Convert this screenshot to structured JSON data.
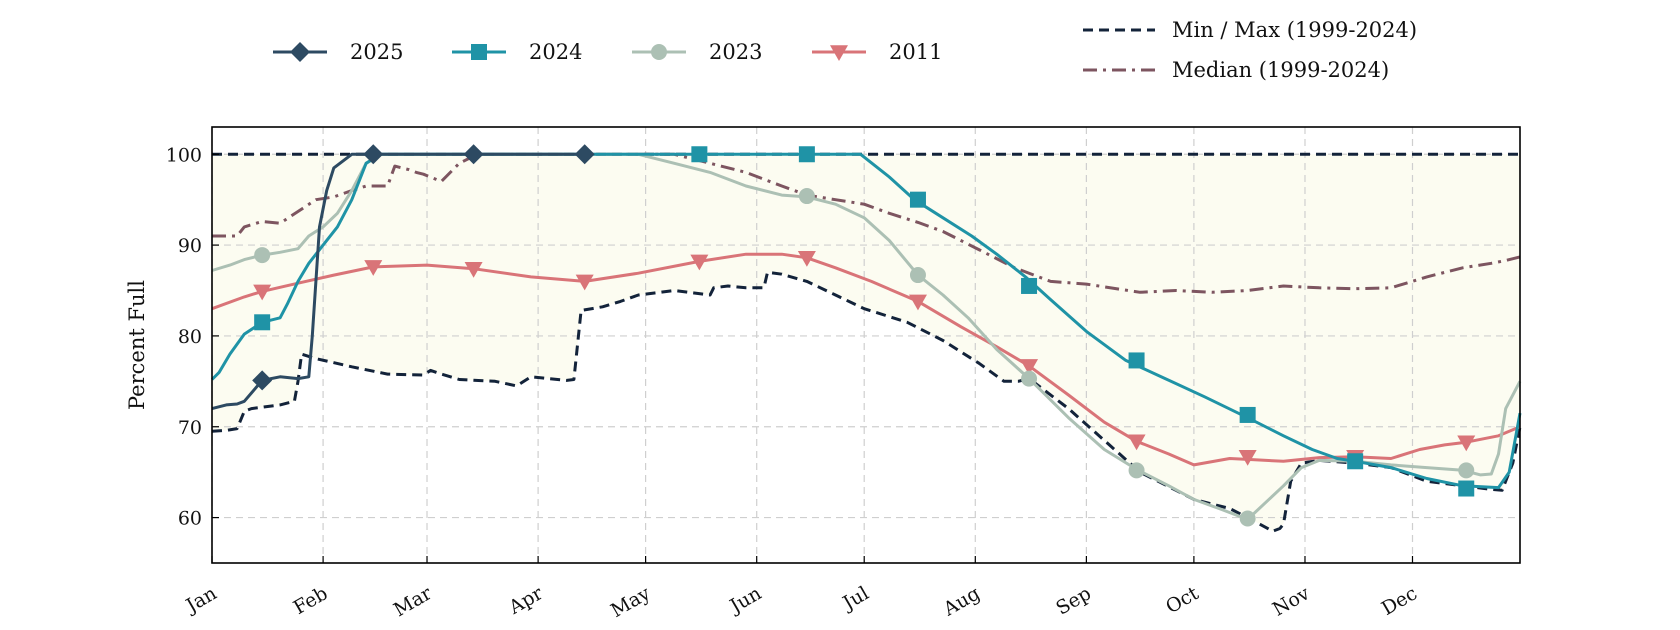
{
  "chart_data": {
    "type": "line",
    "title": "",
    "xlabel": "",
    "ylabel": "Percent Full",
    "ylim": [
      55,
      103
    ],
    "yticks": [
      60,
      70,
      80,
      90,
      100
    ],
    "xlim": [
      1,
      366
    ],
    "x_tick_labels": [
      "Jan",
      "Feb",
      "Mar",
      "Apr",
      "May",
      "Jun",
      "Jul",
      "Aug",
      "Sep",
      "Oct",
      "Nov",
      "Dec"
    ],
    "x_tick_days": [
      1,
      32,
      61,
      92,
      122,
      153,
      183,
      214,
      245,
      275,
      306,
      336
    ],
    "grid": true,
    "legend_placement": "top",
    "colors": {
      "s2025": "#2d4a62",
      "s2024": "#1f93a6",
      "s2023": "#acc0b4",
      "s2011": "#d97478",
      "minmax": "#13233a",
      "median": "#7d5560",
      "band": "#fcfcf1"
    },
    "series": [
      {
        "name": "2025",
        "marker": "diamond",
        "line": "solid",
        "x": [
          1,
          5,
          8,
          10,
          15,
          20,
          25,
          28,
          29,
          31,
          33,
          35,
          40,
          46,
          60,
          75,
          100,
          106
        ],
        "y": [
          72,
          72.4,
          72.5,
          72.8,
          75.1,
          75.5,
          75.3,
          75.5,
          80,
          92,
          96,
          98.5,
          100,
          100,
          100,
          100,
          100,
          100
        ],
        "marker_x": [
          15,
          46,
          74,
          105
        ],
        "marker_y": [
          75.1,
          100,
          100,
          100
        ]
      },
      {
        "name": "2024",
        "marker": "square",
        "line": "solid",
        "x": [
          1,
          3,
          6,
          10,
          15,
          20,
          22,
          25,
          28,
          32,
          36,
          40,
          44,
          48,
          60,
          80,
          100,
          120,
          140,
          160,
          182,
          190,
          197,
          205,
          213,
          220,
          228,
          235,
          245,
          256,
          267,
          278,
          290,
          300,
          308,
          315,
          320,
          330,
          340,
          350,
          360,
          363,
          366
        ],
        "y": [
          75.2,
          76,
          78,
          80.2,
          81.5,
          82,
          83.5,
          86,
          88,
          90,
          92,
          95,
          99,
          100,
          100,
          100,
          100,
          100,
          100,
          100,
          100,
          97.5,
          95,
          93,
          91,
          89,
          86.5,
          84,
          80.5,
          77.3,
          75.3,
          73.3,
          71,
          69,
          67.5,
          66.5,
          66.2,
          65.5,
          64.3,
          63.5,
          63.3,
          65,
          71.5
        ],
        "marker_x": [
          15,
          137,
          167,
          198,
          229,
          259,
          290,
          320,
          351
        ],
        "marker_y": [
          81.5,
          100,
          100,
          95,
          85.5,
          77.3,
          71.3,
          66.2,
          63.2
        ]
      },
      {
        "name": "2023",
        "marker": "circle",
        "line": "solid",
        "x": [
          1,
          6,
          10,
          15,
          20,
          25,
          28,
          32,
          36,
          40,
          44,
          48,
          60,
          80,
          100,
          120,
          130,
          140,
          150,
          160,
          167,
          175,
          183,
          190,
          198,
          205,
          212,
          220,
          229,
          240,
          250,
          259,
          268,
          275,
          282,
          290,
          300,
          305,
          310,
          320,
          330,
          340,
          350,
          355,
          358,
          360,
          362,
          366
        ],
        "y": [
          87.2,
          87.8,
          88.4,
          88.9,
          89.2,
          89.6,
          91,
          92,
          93.5,
          96,
          99,
          100,
          100,
          100,
          100,
          100,
          99,
          98,
          96.5,
          95.5,
          95.3,
          94.5,
          93,
          90.5,
          86.7,
          84.5,
          82,
          78.5,
          75.3,
          71,
          67.5,
          65.3,
          63.5,
          62,
          61,
          59.8,
          63.5,
          65.5,
          66.3,
          66.2,
          65.8,
          65.5,
          65.2,
          64.7,
          64.8,
          67,
          72,
          75
        ],
        "marker_x": [
          15,
          167,
          198,
          229,
          259,
          290,
          351
        ],
        "marker_y": [
          88.9,
          95.4,
          86.7,
          75.3,
          65.2,
          59.9,
          65.2
        ]
      },
      {
        "name": "2011",
        "marker": "triangle-down",
        "line": "solid",
        "x": [
          1,
          10,
          15,
          25,
          35,
          46,
          61,
          74,
          90,
          105,
          120,
          137,
          150,
          160,
          167,
          175,
          185,
          198,
          210,
          220,
          229,
          240,
          250,
          259,
          268,
          275,
          285,
          290,
          300,
          310,
          320,
          330,
          338,
          345,
          351,
          360,
          366
        ],
        "y": [
          83,
          84.3,
          84.9,
          85.8,
          86.7,
          87.6,
          87.8,
          87.4,
          86.5,
          86,
          86.9,
          88.2,
          89,
          89,
          88.6,
          87.5,
          86,
          83.8,
          81,
          78.8,
          76.7,
          73.5,
          70.5,
          68.4,
          67,
          65.8,
          66.5,
          66.4,
          66.2,
          66.6,
          66.7,
          66.5,
          67.5,
          68,
          68.3,
          69,
          70
        ],
        "marker_x": [
          15,
          46,
          74,
          105,
          137,
          167,
          198,
          229,
          259,
          290,
          320,
          351
        ],
        "marker_y": [
          84.9,
          87.6,
          87.4,
          86,
          88.2,
          88.6,
          83.8,
          76.7,
          68.4,
          66.7,
          66.7,
          68.3
        ]
      },
      {
        "name": "Min / Max (1999-2024)",
        "role": "min",
        "marker": "none",
        "line": "dashed",
        "x": [
          1,
          5,
          8,
          10,
          12,
          20,
          24,
          25,
          26,
          30,
          40,
          50,
          60,
          62,
          65,
          70,
          80,
          86,
          90,
          100,
          102,
          103,
          104,
          110,
          115,
          120,
          130,
          140,
          141,
          145,
          150,
          155,
          156,
          160,
          167,
          175,
          183,
          195,
          205,
          215,
          222,
          226,
          229,
          240,
          250,
          260,
          270,
          275,
          285,
          290,
          297,
          299,
          300,
          302,
          305,
          310,
          320,
          330,
          340,
          350,
          358,
          361,
          364,
          366
        ],
        "y": [
          69.5,
          69.6,
          69.8,
          71.7,
          72,
          72.4,
          72.8,
          75,
          78,
          77.5,
          76.6,
          75.8,
          75.7,
          76.2,
          75.8,
          75.2,
          75,
          74.5,
          75.5,
          75.1,
          75.2,
          79,
          82.8,
          83.2,
          83.8,
          84.5,
          85,
          84.5,
          85.3,
          85.5,
          85.3,
          85.3,
          87,
          86.8,
          86,
          84.5,
          83,
          81.5,
          79.5,
          77,
          75,
          75,
          75.3,
          72,
          68.5,
          65,
          63,
          62,
          61,
          60,
          58.5,
          58.8,
          59.3,
          64,
          66,
          66.3,
          66,
          65.5,
          64,
          63.5,
          63.1,
          63,
          66,
          70
        ]
      },
      {
        "name": "Max",
        "role": "max",
        "marker": "none",
        "line": "dashed",
        "x": [
          1,
          366
        ],
        "y": [
          100,
          100
        ]
      },
      {
        "name": "Median (1999-2024)",
        "role": "median",
        "marker": "none",
        "line": "dashdot",
        "x": [
          1,
          8,
          10,
          15,
          20,
          30,
          35,
          40,
          44,
          46,
          50,
          52,
          56,
          58,
          60,
          65,
          70,
          75,
          90,
          100,
          120,
          130,
          140,
          150,
          160,
          167,
          175,
          183,
          190,
          198,
          205,
          215,
          225,
          235,
          245,
          260,
          270,
          280,
          290,
          300,
          310,
          320,
          330,
          340,
          350,
          358,
          362,
          366
        ],
        "y": [
          91,
          91,
          92,
          92.6,
          92.4,
          95,
          95.3,
          96,
          96.5,
          96.5,
          96.5,
          98.7,
          98.3,
          98,
          97.8,
          97,
          99,
          100,
          100,
          100,
          100,
          100,
          99,
          98,
          96.5,
          95.5,
          95,
          94.5,
          93.5,
          92.5,
          91.5,
          89.5,
          87.5,
          86,
          85.7,
          84.8,
          85,
          84.8,
          85,
          85.5,
          85.3,
          85.2,
          85.3,
          86.5,
          87.5,
          88,
          88.3,
          88.7
        ]
      }
    ]
  }
}
